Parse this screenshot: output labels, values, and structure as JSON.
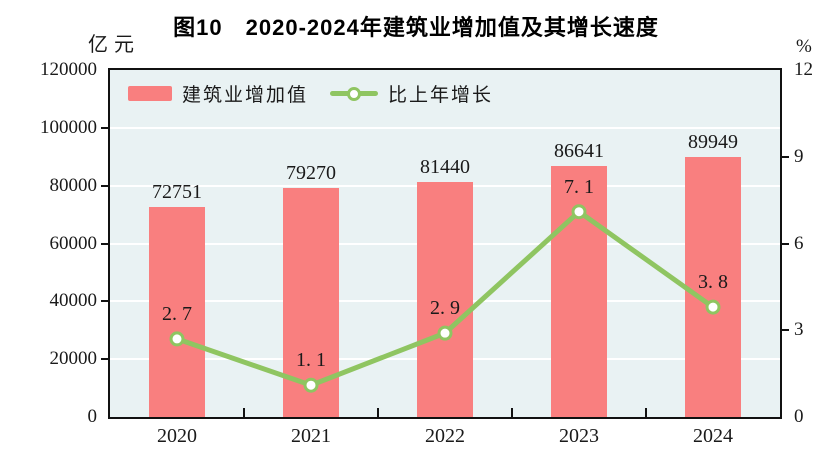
{
  "title": "图10　2020-2024年建筑业增加值及其增长速度",
  "left_axis_unit": "亿元",
  "right_axis_unit": "%",
  "legend": {
    "bar_label": "建筑业增加值",
    "line_label": "比上年增长"
  },
  "colors": {
    "bar": "#F97F7F",
    "line": "#8FC561",
    "marker_fill": "#FFFFFF",
    "plot_bg": "#E9F2F3",
    "grid": "#FFFFFF",
    "axis": "#111111",
    "text": "#1A1A1A"
  },
  "chart_data": {
    "type": "bar+line",
    "title": "图10　2020-2024年建筑业增加值及其增长速度",
    "categories": [
      "2020",
      "2021",
      "2022",
      "2023",
      "2024"
    ],
    "series": [
      {
        "name": "建筑业增加值",
        "type": "bar",
        "axis": "left",
        "values": [
          72751,
          79270,
          81440,
          86641,
          89949
        ],
        "labels": [
          "72751",
          "79270",
          "81440",
          "86641",
          "89949"
        ]
      },
      {
        "name": "比上年增长",
        "type": "line",
        "axis": "right",
        "values": [
          2.7,
          1.1,
          2.9,
          7.1,
          3.8
        ],
        "labels": [
          "2. 7",
          "1. 1",
          "2. 9",
          "7. 1",
          "3. 8"
        ]
      }
    ],
    "left_axis": {
      "label": "亿元",
      "min": 0,
      "max": 120000,
      "ticks": [
        0,
        20000,
        40000,
        60000,
        80000,
        100000,
        120000
      ]
    },
    "right_axis": {
      "label": "%",
      "min": 0,
      "max": 12,
      "ticks": [
        0,
        3,
        6,
        9,
        12
      ]
    },
    "grid": true,
    "legend_position": "top-left-inside"
  }
}
